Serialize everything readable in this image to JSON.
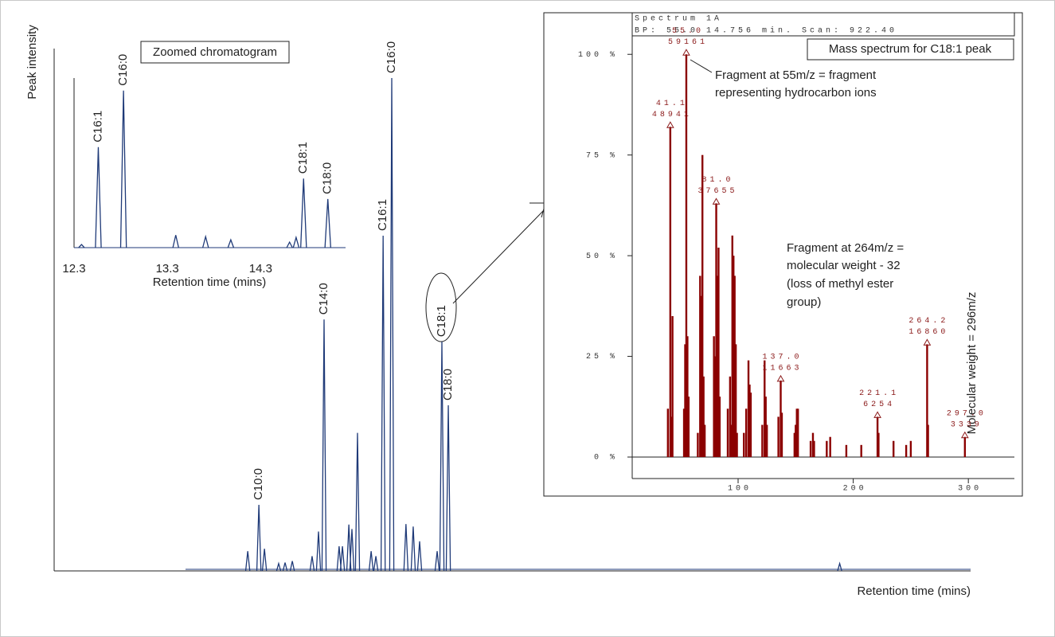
{
  "chart_data": [
    {
      "type": "peaks",
      "ylabel": "Peak intensity",
      "xlabel": "Retention time (mins)",
      "xlim": [
        0.7,
        33.6
      ],
      "ylim": [
        0,
        105
      ],
      "color": "#1f3a78",
      "x": [
        7.65,
        8.05,
        8.25,
        8.76,
        8.99,
        9.25,
        9.96,
        10.19,
        10.39,
        10.93,
        11.05,
        11.28,
        11.39,
        11.59,
        12.08,
        12.25,
        12.51,
        12.82,
        13.33,
        13.59,
        13.82,
        14.45,
        14.62,
        14.85,
        28.9
      ],
      "values": [
        4,
        13.4,
        4.5,
        1.5,
        1.7,
        2,
        3,
        8,
        51,
        5,
        5,
        9.4,
        8.5,
        28,
        4,
        3,
        68,
        100,
        9.5,
        9,
        6,
        4,
        46.5,
        33.6,
        1.5
      ],
      "peak_labels": [
        null,
        "C10:0",
        null,
        null,
        null,
        null,
        null,
        null,
        "C14:0",
        null,
        null,
        null,
        null,
        null,
        null,
        null,
        "C16:1",
        "C16:0",
        null,
        null,
        null,
        null,
        "C18:1",
        "C18:0",
        null
      ]
    },
    {
      "type": "peaks",
      "title": "Zoomed chromatogram",
      "xlabel": "Retention time (mins)",
      "xlim": [
        12.3,
        15.21
      ],
      "ylim": [
        0,
        108
      ],
      "xticks": [
        12.3,
        13.3,
        14.3
      ],
      "color": "#1f3a78",
      "x": [
        12.38,
        12.56,
        12.83,
        13.39,
        13.71,
        13.98,
        14.61,
        14.68,
        14.76,
        15.02
      ],
      "values": [
        2,
        64,
        100,
        8,
        7,
        5,
        3.5,
        6.5,
        44,
        31
      ],
      "peak_labels": [
        null,
        "C16:1",
        "C16:0",
        null,
        null,
        null,
        null,
        null,
        "C18:1",
        "C18:0"
      ]
    },
    {
      "type": "spectrum",
      "title": "Mass spectrum for C18:1 peak",
      "header": [
        "Spectrum 1A",
        "BP: 55.0   14.756 min. Scan: 922.40"
      ],
      "xlim": [
        8,
        340
      ],
      "ylim": [
        0,
        104
      ],
      "color": "#8b0000",
      "xticks": [
        100,
        200,
        300
      ],
      "yticks": [
        {
          "value": 0,
          "label": "0 %"
        },
        {
          "value": 25,
          "label": "25 %"
        },
        {
          "value": 50,
          "label": "50 %"
        },
        {
          "value": 75,
          "label": "75 %"
        },
        {
          "value": 100,
          "label": "100 %"
        }
      ],
      "x": [
        39,
        41.1,
        42,
        43,
        53,
        54,
        55.0,
        56,
        57,
        65,
        67,
        68,
        69,
        70,
        71,
        79,
        80,
        81.0,
        82,
        83,
        84,
        91,
        93,
        94,
        95,
        96,
        97,
        98,
        99,
        105,
        107,
        109,
        110,
        111,
        121,
        123,
        124,
        125,
        135,
        137.0,
        138,
        149,
        150,
        151,
        152,
        163,
        165,
        166,
        177,
        180,
        194,
        207,
        221.1,
        222,
        235,
        246,
        250,
        264.2,
        265,
        297.0
      ],
      "values": [
        12,
        82,
        10,
        35,
        12,
        28,
        100,
        30,
        15,
        6,
        45,
        40,
        75,
        20,
        8,
        30,
        25,
        63,
        45,
        52,
        15,
        12,
        20,
        8,
        55,
        50,
        45,
        28,
        6,
        6,
        12,
        24,
        18,
        16,
        8,
        24,
        15,
        8,
        10,
        19,
        11,
        6,
        8,
        12,
        12,
        4,
        6,
        4,
        4,
        5,
        3,
        3,
        10,
        6,
        4,
        3,
        4,
        28,
        8,
        5
      ],
      "mz_labels": [
        null,
        "41.1",
        null,
        null,
        null,
        null,
        "55.0",
        null,
        null,
        null,
        null,
        null,
        null,
        null,
        null,
        null,
        null,
        "81.0",
        null,
        null,
        null,
        null,
        null,
        null,
        null,
        null,
        null,
        null,
        null,
        null,
        null,
        null,
        null,
        null,
        null,
        null,
        null,
        null,
        null,
        "137.0",
        null,
        null,
        null,
        null,
        null,
        null,
        null,
        null,
        null,
        null,
        null,
        null,
        "221.1",
        null,
        null,
        null,
        null,
        "264.2",
        null,
        "297.0"
      ],
      "count_labels": [
        null,
        "48941",
        null,
        null,
        null,
        null,
        "59161",
        null,
        null,
        null,
        null,
        null,
        null,
        null,
        null,
        null,
        null,
        "37655",
        null,
        null,
        null,
        null,
        null,
        null,
        null,
        null,
        null,
        null,
        null,
        null,
        null,
        null,
        null,
        null,
        null,
        null,
        null,
        null,
        null,
        "11663",
        null,
        null,
        null,
        null,
        null,
        null,
        null,
        null,
        null,
        null,
        null,
        null,
        "6254",
        null,
        null,
        null,
        null,
        "16860",
        null,
        "3339"
      ],
      "annotations": [
        [
          "Fragment at 55m/z = fragment",
          "representing hydrocarbon ions"
        ],
        [
          "Fragment at 264m/z =",
          "molecular weight - 32",
          "(loss of methyl ester",
          "group)"
        ],
        [
          "Molecular weight = 296m/z"
        ]
      ]
    }
  ]
}
